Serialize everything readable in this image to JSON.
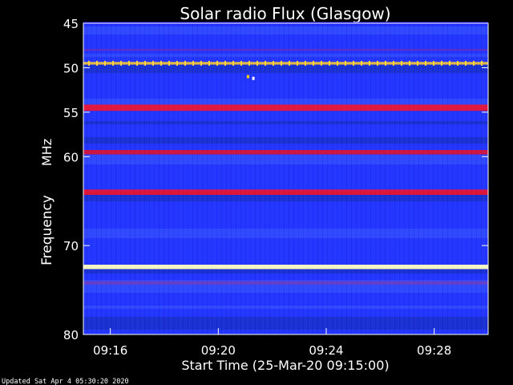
{
  "chart_data": {
    "type": "heatmap",
    "title": "Solar radio Flux (Glasgow)",
    "xlabel": "Start Time (25-Mar-20 09:15:00)",
    "ylabel_prefix": "Frequency ",
    "ylabel_unit": "MHz",
    "footer": "Updated Sat Apr  4 05:30:20 2020",
    "x_range_minutes": [
      0.0,
      15.0
    ],
    "x_ticks": [
      {
        "label": "09:16",
        "value": 1.0
      },
      {
        "label": "09:20",
        "value": 5.0
      },
      {
        "label": "09:24",
        "value": 9.0
      },
      {
        "label": "09:28",
        "value": 13.0
      }
    ],
    "y_range_mhz": [
      45.0,
      80.0
    ],
    "y_ticks": [
      {
        "label": "45",
        "value": 45
      },
      {
        "label": "50",
        "value": 50
      },
      {
        "label": "55",
        "value": 55
      },
      {
        "label": "60",
        "value": 60
      },
      {
        "label": "70",
        "value": 70
      },
      {
        "label": "80",
        "value": 80
      }
    ],
    "bands": [
      {
        "freq": 45.0,
        "width": 0.3,
        "color": "#1b1bff"
      },
      {
        "freq": 48.0,
        "width": 0.2,
        "color": "#6a2fb8"
      },
      {
        "freq": 49.5,
        "width": 0.3,
        "color": "#ffcf2f"
      },
      {
        "freq": 54.5,
        "width": 0.7,
        "color": "#ff1020"
      },
      {
        "freq": 59.5,
        "width": 0.5,
        "color": "#e81224"
      },
      {
        "freq": 64.0,
        "width": 0.6,
        "color": "#ff1020"
      },
      {
        "freq": 72.4,
        "width": 0.5,
        "color": "#ffffbf"
      },
      {
        "freq": 74.2,
        "width": 0.4,
        "color": "#6b3ec2"
      }
    ],
    "point_bursts": [
      {
        "time_min": 6.3,
        "freq_mhz": 51.2,
        "color": "#ffffff"
      },
      {
        "time_min": 6.1,
        "freq_mhz": 51.0,
        "color": "#ffd400"
      }
    ],
    "colors": {
      "background": "#000000",
      "plot_low": "#1f20ff",
      "plot_mid": "#2640ff",
      "plot_high": "#4a5cff",
      "plot_dark": "#07106f",
      "axis": "#ffffff"
    }
  }
}
